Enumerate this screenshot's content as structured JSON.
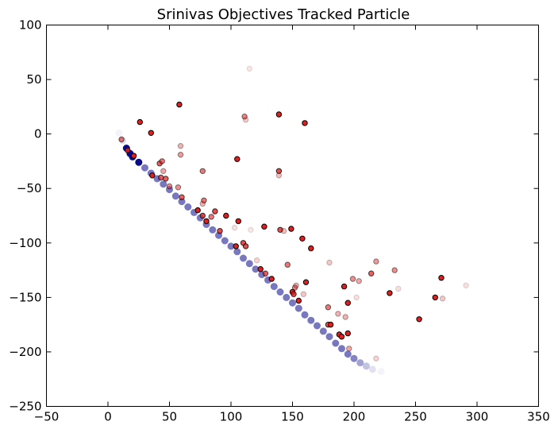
{
  "chart_data": {
    "type": "scatter",
    "title": "Srinivas Objectives Tracked Particle",
    "xlabel": "",
    "ylabel": "",
    "xlim": [
      -50,
      350
    ],
    "ylim": [
      -250,
      100
    ],
    "xticks": [
      -50,
      0,
      50,
      100,
      150,
      200,
      250,
      300,
      350
    ],
    "yticks": [
      100,
      50,
      0,
      -50,
      -100,
      -150,
      -200,
      -250
    ],
    "xtick_labels": [
      "−50",
      "0",
      "50",
      "100",
      "150",
      "200",
      "250",
      "300",
      "350"
    ],
    "ytick_labels": [
      "100",
      "50",
      "0",
      "−50",
      "−100",
      "−150",
      "−200",
      "−250"
    ],
    "grid": false,
    "colors": {
      "track": "#0a0a8c",
      "points": "#e02020",
      "edge": "#000000"
    },
    "series": [
      {
        "role": "tracked-particle-trajectory",
        "x": [
          9,
          12,
          15,
          18,
          20,
          25,
          30,
          35,
          40,
          45,
          50,
          55,
          60,
          65,
          70,
          75,
          80,
          85,
          90,
          95,
          100,
          105,
          110,
          115,
          120,
          125,
          130,
          135,
          140,
          145,
          150,
          155,
          160,
          165,
          170,
          175,
          180,
          185,
          190,
          195,
          200,
          205,
          210,
          215,
          222
        ],
        "y": [
          1,
          -6,
          -13,
          -18,
          -21,
          -26,
          -31,
          -36,
          -41,
          -46,
          -51,
          -57,
          -62,
          -67,
          -72,
          -77,
          -83,
          -88,
          -93,
          -98,
          -103,
          -108,
          -114,
          -119,
          -124,
          -129,
          -134,
          -140,
          -145,
          -150,
          -155,
          -160,
          -166,
          -171,
          -176,
          -181,
          -186,
          -192,
          -197,
          -202,
          -206,
          -210,
          -213,
          -216,
          -218
        ]
      },
      {
        "role": "objective-points",
        "points": [
          {
            "x": 11,
            "y": -5,
            "a": 0.6
          },
          {
            "x": 16,
            "y": -15,
            "a": 0.85
          },
          {
            "x": 21,
            "y": -20,
            "a": 1.0
          },
          {
            "x": 26,
            "y": 11,
            "a": 1.0
          },
          {
            "x": 35,
            "y": 1,
            "a": 1.0
          },
          {
            "x": 36,
            "y": -38,
            "a": 1.0
          },
          {
            "x": 42,
            "y": -27,
            "a": 0.7
          },
          {
            "x": 44,
            "y": -25,
            "a": 0.6
          },
          {
            "x": 45,
            "y": -34,
            "a": 0.4
          },
          {
            "x": 43,
            "y": -40,
            "a": 0.7
          },
          {
            "x": 47,
            "y": -41,
            "a": 0.7
          },
          {
            "x": 50,
            "y": -48,
            "a": 0.5
          },
          {
            "x": 57,
            "y": -49,
            "a": 0.5
          },
          {
            "x": 58,
            "y": 27,
            "a": 1.0
          },
          {
            "x": 59,
            "y": -11,
            "a": 0.35
          },
          {
            "x": 59,
            "y": -19,
            "a": 0.45
          },
          {
            "x": 60,
            "y": -58,
            "a": 0.7
          },
          {
            "x": 73,
            "y": -70,
            "a": 1.0
          },
          {
            "x": 77,
            "y": -34,
            "a": 0.6
          },
          {
            "x": 77,
            "y": -64,
            "a": 0.35
          },
          {
            "x": 78,
            "y": -61,
            "a": 0.6
          },
          {
            "x": 77,
            "y": -75,
            "a": 0.8
          },
          {
            "x": 80,
            "y": -80,
            "a": 1.0
          },
          {
            "x": 84,
            "y": -76,
            "a": 0.6
          },
          {
            "x": 87,
            "y": -71,
            "a": 0.8
          },
          {
            "x": 91,
            "y": -89,
            "a": 0.8
          },
          {
            "x": 96,
            "y": -75,
            "a": 1.0
          },
          {
            "x": 104,
            "y": -103,
            "a": 1.0
          },
          {
            "x": 103,
            "y": -86,
            "a": 0.15
          },
          {
            "x": 105,
            "y": -23,
            "a": 1.0
          },
          {
            "x": 106,
            "y": -80,
            "a": 1.0
          },
          {
            "x": 110,
            "y": -100,
            "a": 0.8
          },
          {
            "x": 111,
            "y": 16,
            "a": 0.55
          },
          {
            "x": 112,
            "y": 13,
            "a": 0.25
          },
          {
            "x": 112,
            "y": -103,
            "a": 0.8
          },
          {
            "x": 115,
            "y": 60,
            "a": 0.12
          },
          {
            "x": 116,
            "y": -88,
            "a": 0.12
          },
          {
            "x": 121,
            "y": -116,
            "a": 0.2
          },
          {
            "x": 124,
            "y": -124,
            "a": 1.0
          },
          {
            "x": 127,
            "y": -85,
            "a": 1.0
          },
          {
            "x": 128,
            "y": -128,
            "a": 0.7
          },
          {
            "x": 133,
            "y": -133,
            "a": 1.0
          },
          {
            "x": 139,
            "y": 18,
            "a": 1.0
          },
          {
            "x": 139,
            "y": -34,
            "a": 0.8
          },
          {
            "x": 139,
            "y": -38,
            "a": 0.3
          },
          {
            "x": 140,
            "y": -88,
            "a": 0.8
          },
          {
            "x": 143,
            "y": -89,
            "a": 0.3
          },
          {
            "x": 146,
            "y": -120,
            "a": 0.6
          },
          {
            "x": 149,
            "y": -87,
            "a": 1.0
          },
          {
            "x": 150,
            "y": -145,
            "a": 1.0
          },
          {
            "x": 151,
            "y": -147,
            "a": 0.8
          },
          {
            "x": 152,
            "y": -141,
            "a": 0.55
          },
          {
            "x": 153,
            "y": -139,
            "a": 0.35
          },
          {
            "x": 155,
            "y": -153,
            "a": 1.0
          },
          {
            "x": 158,
            "y": -96,
            "a": 1.0
          },
          {
            "x": 159,
            "y": -147,
            "a": 0.25
          },
          {
            "x": 160,
            "y": 10,
            "a": 1.0
          },
          {
            "x": 161,
            "y": -136,
            "a": 1.0
          },
          {
            "x": 165,
            "y": -105,
            "a": 1.0
          },
          {
            "x": 179,
            "y": -159,
            "a": 0.6
          },
          {
            "x": 180,
            "y": -118,
            "a": 0.25
          },
          {
            "x": 179,
            "y": -175,
            "a": 0.8
          },
          {
            "x": 181,
            "y": -175,
            "a": 1.0
          },
          {
            "x": 188,
            "y": -184,
            "a": 1.0
          },
          {
            "x": 190,
            "y": -186,
            "a": 1.0
          },
          {
            "x": 187,
            "y": -165,
            "a": 0.35
          },
          {
            "x": 192,
            "y": -140,
            "a": 1.0
          },
          {
            "x": 193,
            "y": -168,
            "a": 0.35
          },
          {
            "x": 195,
            "y": -155,
            "a": 1.0
          },
          {
            "x": 195,
            "y": -183,
            "a": 1.0
          },
          {
            "x": 196,
            "y": -197,
            "a": 0.4
          },
          {
            "x": 199,
            "y": -133,
            "a": 0.5
          },
          {
            "x": 202,
            "y": -150,
            "a": 0.15
          },
          {
            "x": 204,
            "y": -135,
            "a": 0.4
          },
          {
            "x": 214,
            "y": -128,
            "a": 0.7
          },
          {
            "x": 218,
            "y": -117,
            "a": 0.45
          },
          {
            "x": 218,
            "y": -206,
            "a": 0.2
          },
          {
            "x": 229,
            "y": -146,
            "a": 1.0
          },
          {
            "x": 233,
            "y": -125,
            "a": 0.5
          },
          {
            "x": 236,
            "y": -142,
            "a": 0.15
          },
          {
            "x": 253,
            "y": -170,
            "a": 1.0
          },
          {
            "x": 266,
            "y": -150,
            "a": 1.0
          },
          {
            "x": 271,
            "y": -132,
            "a": 1.0
          },
          {
            "x": 272,
            "y": -151,
            "a": 0.25
          },
          {
            "x": 291,
            "y": -139,
            "a": 0.15
          }
        ]
      }
    ]
  }
}
